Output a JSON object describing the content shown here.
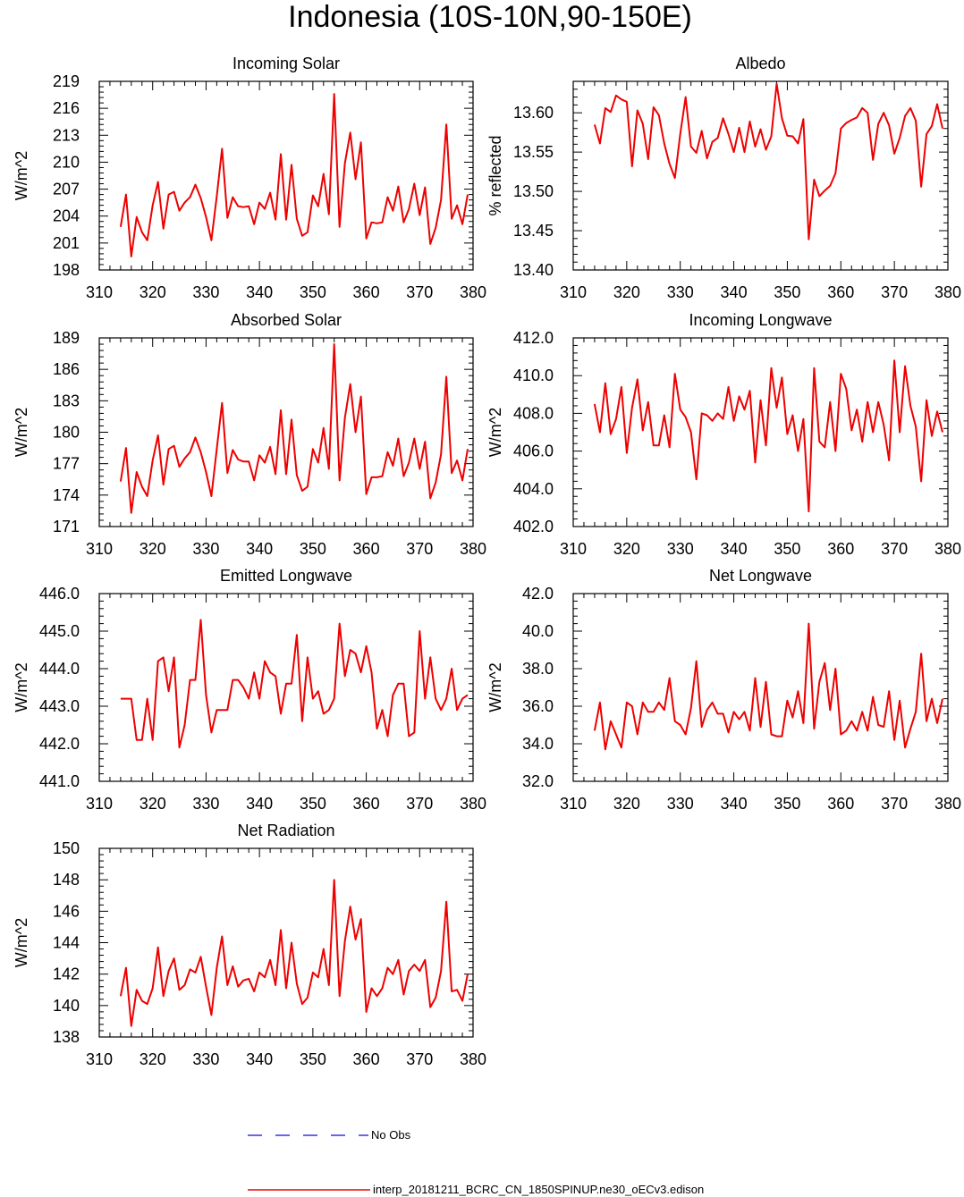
{
  "page_title": "Indonesia (10S-10N,90-150E)",
  "legend": {
    "obs_label": "No Obs",
    "obs_color": "#3333dd",
    "model_label": "interp_20181211_BCRC_CN_1850SPINUP.ne30_oECv3.edison",
    "model_color": "#ee0000"
  },
  "chart_data": [
    {
      "type": "line",
      "title": "Incoming Solar",
      "ylabel": "W/m^2",
      "xlim": [
        310,
        380
      ],
      "ylim": [
        198,
        219
      ],
      "xticks": [
        310,
        320,
        330,
        340,
        350,
        360,
        370,
        380
      ],
      "yticks": [
        198,
        201,
        204,
        207,
        210,
        213,
        216,
        219
      ],
      "yfmt": 0,
      "x": [
        314,
        315,
        316,
        317,
        318,
        319,
        320,
        321,
        322,
        323,
        324,
        325,
        326,
        327,
        328,
        329,
        330,
        331,
        332,
        333,
        334,
        335,
        336,
        337,
        338,
        339,
        340,
        341,
        342,
        343,
        344,
        345,
        346,
        347,
        348,
        349,
        350,
        351,
        352,
        353,
        354,
        355,
        356,
        357,
        358,
        359,
        360,
        361,
        362,
        363,
        364,
        365,
        366,
        367,
        368,
        369,
        370,
        371,
        372,
        373,
        374,
        375,
        376,
        377,
        378,
        379
      ],
      "series": [
        {
          "values": [
            202.8,
            206.4,
            199.5,
            203.9,
            202.2,
            201.3,
            205.2,
            207.8,
            202.6,
            206.4,
            206.7,
            204.6,
            205.5,
            206.1,
            207.5,
            206.0,
            203.9,
            201.3,
            206.2,
            211.5,
            203.8,
            206.1,
            205.1,
            205.0,
            205.1,
            203.1,
            205.5,
            204.8,
            206.6,
            203.6,
            210.9,
            203.6,
            209.7,
            203.7,
            201.8,
            202.2,
            206.3,
            205.1,
            208.7,
            204.2,
            217.6,
            202.8,
            209.9,
            213.3,
            208.1,
            212.2,
            201.5,
            203.3,
            203.2,
            203.3,
            206.1,
            204.6,
            207.3,
            203.3,
            204.8,
            207.6,
            204.1,
            207.2,
            200.9,
            202.7,
            205.8,
            214.2,
            203.7,
            205.2,
            203.1,
            206.4
          ]
        }
      ]
    },
    {
      "type": "line",
      "title": "Albedo",
      "ylabel": "% reflected",
      "xlim": [
        310,
        380
      ],
      "ylim": [
        13.4,
        13.64
      ],
      "xticks": [
        310,
        320,
        330,
        340,
        350,
        360,
        370,
        380
      ],
      "yticks": [
        13.4,
        13.45,
        13.5,
        13.55,
        13.6
      ],
      "yfmt": 2,
      "x": [
        314,
        315,
        316,
        317,
        318,
        319,
        320,
        321,
        322,
        323,
        324,
        325,
        326,
        327,
        328,
        329,
        330,
        331,
        332,
        333,
        334,
        335,
        336,
        337,
        338,
        339,
        340,
        341,
        342,
        343,
        344,
        345,
        346,
        347,
        348,
        349,
        350,
        351,
        352,
        353,
        354,
        355,
        356,
        357,
        358,
        359,
        360,
        361,
        362,
        363,
        364,
        365,
        366,
        367,
        368,
        369,
        370,
        371,
        372,
        373,
        374,
        375,
        376,
        377,
        378,
        379
      ],
      "series": [
        {
          "values": [
            13.585,
            13.561,
            13.606,
            13.601,
            13.622,
            13.617,
            13.614,
            13.532,
            13.603,
            13.586,
            13.541,
            13.607,
            13.597,
            13.561,
            13.535,
            13.517,
            13.573,
            13.62,
            13.557,
            13.549,
            13.577,
            13.542,
            13.563,
            13.568,
            13.593,
            13.573,
            13.55,
            13.581,
            13.55,
            13.589,
            13.557,
            13.579,
            13.553,
            13.57,
            13.637,
            13.593,
            13.571,
            13.57,
            13.561,
            13.592,
            13.439,
            13.515,
            13.494,
            13.501,
            13.507,
            13.523,
            13.58,
            13.587,
            13.591,
            13.594,
            13.606,
            13.6,
            13.54,
            13.586,
            13.6,
            13.584,
            13.548,
            13.568,
            13.596,
            13.606,
            13.59,
            13.506,
            13.573,
            13.583,
            13.611,
            13.58
          ]
        }
      ]
    },
    {
      "type": "line",
      "title": "Absorbed Solar",
      "ylabel": "W/m^2",
      "xlim": [
        310,
        380
      ],
      "ylim": [
        171,
        189
      ],
      "xticks": [
        310,
        320,
        330,
        340,
        350,
        360,
        370,
        380
      ],
      "yticks": [
        171,
        174,
        177,
        180,
        183,
        186,
        189
      ],
      "yfmt": 0,
      "x": [
        314,
        315,
        316,
        317,
        318,
        319,
        320,
        321,
        322,
        323,
        324,
        325,
        326,
        327,
        328,
        329,
        330,
        331,
        332,
        333,
        334,
        335,
        336,
        337,
        338,
        339,
        340,
        341,
        342,
        343,
        344,
        345,
        346,
        347,
        348,
        349,
        350,
        351,
        352,
        353,
        354,
        355,
        356,
        357,
        358,
        359,
        360,
        361,
        362,
        363,
        364,
        365,
        366,
        367,
        368,
        369,
        370,
        371,
        372,
        373,
        374,
        375,
        376,
        377,
        378,
        379
      ],
      "series": [
        {
          "values": [
            175.3,
            178.5,
            172.3,
            176.2,
            174.8,
            173.9,
            177.3,
            179.7,
            175.0,
            178.4,
            178.7,
            176.7,
            177.5,
            178.1,
            179.5,
            178.1,
            176.2,
            173.9,
            178.4,
            182.8,
            176.1,
            178.3,
            177.4,
            177.2,
            177.2,
            175.4,
            177.8,
            177.1,
            178.6,
            176.0,
            182.1,
            176.0,
            181.2,
            175.9,
            174.4,
            174.8,
            178.4,
            177.1,
            180.4,
            176.5,
            188.4,
            175.4,
            181.4,
            184.6,
            180.0,
            183.4,
            174.1,
            175.7,
            175.7,
            175.8,
            178.1,
            176.8,
            179.4,
            175.8,
            177.1,
            179.4,
            176.5,
            179.1,
            173.7,
            175.2,
            177.9,
            185.3,
            176.1,
            177.3,
            175.4,
            178.4
          ]
        }
      ]
    },
    {
      "type": "line",
      "title": "Incoming Longwave",
      "ylabel": "W/m^2",
      "xlim": [
        310,
        380
      ],
      "ylim": [
        402.0,
        412.0
      ],
      "xticks": [
        310,
        320,
        330,
        340,
        350,
        360,
        370,
        380
      ],
      "yticks": [
        402.0,
        404.0,
        406.0,
        408.0,
        410.0,
        412.0
      ],
      "yfmt": 1,
      "x": [
        314,
        315,
        316,
        317,
        318,
        319,
        320,
        321,
        322,
        323,
        324,
        325,
        326,
        327,
        328,
        329,
        330,
        331,
        332,
        333,
        334,
        335,
        336,
        337,
        338,
        339,
        340,
        341,
        342,
        343,
        344,
        345,
        346,
        347,
        348,
        349,
        350,
        351,
        352,
        353,
        354,
        355,
        356,
        357,
        358,
        359,
        360,
        361,
        362,
        363,
        364,
        365,
        366,
        367,
        368,
        369,
        370,
        371,
        372,
        373,
        374,
        375,
        376,
        377,
        378,
        379
      ],
      "series": [
        {
          "values": [
            408.5,
            407.0,
            409.6,
            406.9,
            407.7,
            409.4,
            405.9,
            408.3,
            409.8,
            407.1,
            408.6,
            406.3,
            406.3,
            407.9,
            406.2,
            410.1,
            408.2,
            407.8,
            407.0,
            404.5,
            408.0,
            407.9,
            407.6,
            408.0,
            407.7,
            409.4,
            407.6,
            408.9,
            408.2,
            409.2,
            405.4,
            408.7,
            406.3,
            410.4,
            408.3,
            409.9,
            406.9,
            407.9,
            406.0,
            407.7,
            402.8,
            410.4,
            406.5,
            406.2,
            408.6,
            406.0,
            410.1,
            409.3,
            407.1,
            408.2,
            406.5,
            408.6,
            407.0,
            408.6,
            407.4,
            405.5,
            410.8,
            407.0,
            410.5,
            408.4,
            407.3,
            404.4,
            408.7,
            406.8,
            408.1,
            407.0
          ]
        }
      ]
    },
    {
      "type": "line",
      "title": "Emitted Longwave",
      "ylabel": "W/m^2",
      "xlim": [
        310,
        380
      ],
      "ylim": [
        441.0,
        446.0
      ],
      "xticks": [
        310,
        320,
        330,
        340,
        350,
        360,
        370,
        380
      ],
      "yticks": [
        441.0,
        442.0,
        443.0,
        444.0,
        445.0,
        446.0
      ],
      "yfmt": 1,
      "x": [
        314,
        315,
        316,
        317,
        318,
        319,
        320,
        321,
        322,
        323,
        324,
        325,
        326,
        327,
        328,
        329,
        330,
        331,
        332,
        333,
        334,
        335,
        336,
        337,
        338,
        339,
        340,
        341,
        342,
        343,
        344,
        345,
        346,
        347,
        348,
        349,
        350,
        351,
        352,
        353,
        354,
        355,
        356,
        357,
        358,
        359,
        360,
        361,
        362,
        363,
        364,
        365,
        366,
        367,
        368,
        369,
        370,
        371,
        372,
        373,
        374,
        375,
        376,
        377,
        378,
        379
      ],
      "series": [
        {
          "values": [
            443.2,
            443.2,
            443.2,
            442.1,
            442.1,
            443.2,
            442.1,
            444.2,
            444.3,
            443.4,
            444.3,
            441.9,
            442.5,
            443.7,
            443.7,
            445.3,
            443.3,
            442.3,
            442.9,
            442.9,
            442.9,
            443.7,
            443.7,
            443.5,
            443.2,
            443.9,
            443.2,
            444.2,
            443.9,
            443.8,
            442.8,
            443.6,
            443.6,
            444.9,
            442.6,
            444.3,
            443.2,
            443.4,
            442.8,
            442.9,
            443.2,
            445.2,
            443.8,
            444.5,
            444.4,
            443.9,
            444.6,
            443.9,
            442.4,
            442.9,
            442.2,
            443.3,
            443.6,
            443.6,
            442.2,
            442.3,
            445.0,
            443.2,
            444.3,
            443.2,
            442.9,
            443.2,
            444.0,
            442.9,
            443.2,
            443.3
          ]
        }
      ]
    },
    {
      "type": "line",
      "title": "Net Longwave",
      "ylabel": "W/m^2",
      "xlim": [
        310,
        380
      ],
      "ylim": [
        32.0,
        42.0
      ],
      "xticks": [
        310,
        320,
        330,
        340,
        350,
        360,
        370,
        380
      ],
      "yticks": [
        32.0,
        34.0,
        36.0,
        38.0,
        40.0,
        42.0
      ],
      "yfmt": 1,
      "x": [
        314,
        315,
        316,
        317,
        318,
        319,
        320,
        321,
        322,
        323,
        324,
        325,
        326,
        327,
        328,
        329,
        330,
        331,
        332,
        333,
        334,
        335,
        336,
        337,
        338,
        339,
        340,
        341,
        342,
        343,
        344,
        345,
        346,
        347,
        348,
        349,
        350,
        351,
        352,
        353,
        354,
        355,
        356,
        357,
        358,
        359,
        360,
        361,
        362,
        363,
        364,
        365,
        366,
        367,
        368,
        369,
        370,
        371,
        372,
        373,
        374,
        375,
        376,
        377,
        378,
        379
      ],
      "series": [
        {
          "values": [
            34.7,
            36.2,
            33.7,
            35.2,
            34.5,
            33.8,
            36.2,
            36.0,
            34.5,
            36.2,
            35.7,
            35.7,
            36.2,
            35.8,
            37.5,
            35.2,
            35.0,
            34.5,
            35.9,
            38.4,
            34.9,
            35.8,
            36.2,
            35.6,
            35.6,
            34.6,
            35.7,
            35.3,
            35.7,
            34.7,
            37.5,
            34.9,
            37.3,
            34.5,
            34.4,
            34.4,
            36.3,
            35.4,
            36.8,
            35.1,
            40.4,
            34.8,
            37.3,
            38.3,
            35.8,
            38.0,
            34.5,
            34.7,
            35.2,
            34.7,
            35.7,
            34.7,
            36.5,
            35.0,
            34.9,
            36.8,
            34.2,
            36.3,
            33.8,
            34.8,
            35.7,
            38.8,
            35.2,
            36.4,
            35.1,
            36.4
          ]
        }
      ]
    },
    {
      "type": "line",
      "title": "Net Radiation",
      "ylabel": "W/m^2",
      "xlim": [
        310,
        380
      ],
      "ylim": [
        138,
        150
      ],
      "xticks": [
        310,
        320,
        330,
        340,
        350,
        360,
        370,
        380
      ],
      "yticks": [
        138,
        140,
        142,
        144,
        146,
        148,
        150
      ],
      "yfmt": 0,
      "x": [
        314,
        315,
        316,
        317,
        318,
        319,
        320,
        321,
        322,
        323,
        324,
        325,
        326,
        327,
        328,
        329,
        330,
        331,
        332,
        333,
        334,
        335,
        336,
        337,
        338,
        339,
        340,
        341,
        342,
        343,
        344,
        345,
        346,
        347,
        348,
        349,
        350,
        351,
        352,
        353,
        354,
        355,
        356,
        357,
        358,
        359,
        360,
        361,
        362,
        363,
        364,
        365,
        366,
        367,
        368,
        369,
        370,
        371,
        372,
        373,
        374,
        375,
        376,
        377,
        378,
        379
      ],
      "series": [
        {
          "values": [
            140.6,
            142.4,
            138.7,
            141.0,
            140.3,
            140.1,
            141.1,
            143.7,
            140.6,
            142.2,
            143.0,
            141.0,
            141.3,
            142.3,
            142.1,
            143.1,
            141.2,
            139.4,
            142.4,
            144.4,
            141.3,
            142.5,
            141.2,
            141.6,
            141.7,
            140.9,
            142.1,
            141.8,
            142.9,
            141.3,
            144.8,
            141.1,
            144.0,
            141.4,
            140.1,
            140.5,
            142.1,
            141.8,
            143.6,
            141.3,
            148.0,
            140.6,
            144.1,
            146.3,
            144.2,
            145.5,
            139.6,
            141.1,
            140.6,
            141.1,
            142.4,
            142.0,
            142.9,
            140.7,
            142.2,
            142.6,
            142.2,
            142.9,
            139.9,
            140.5,
            142.2,
            146.6,
            140.9,
            141.0,
            140.3,
            142.0
          ]
        }
      ]
    }
  ]
}
